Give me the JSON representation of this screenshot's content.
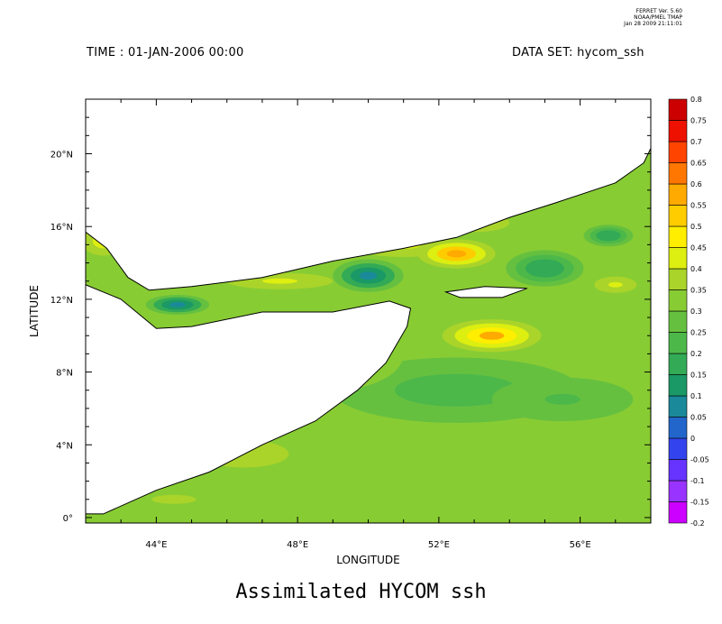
{
  "header": {
    "ferret_lines": [
      "FERRET Ver. 5.60",
      "NOAA/PMEL TMAP",
      "Jan 28 2009 21:11:01"
    ],
    "time_label": "TIME : 01-JAN-2006 00:00",
    "dataset_label": "DATA SET: hycom_ssh"
  },
  "title": "Assimilated HYCOM ssh",
  "chart_data": {
    "type": "heatmap",
    "title": "Assimilated HYCOM ssh",
    "xlabel": "LONGITUDE",
    "ylabel": "LATITUDE",
    "xlim": [
      42,
      58
    ],
    "ylim": [
      -0.3,
      23
    ],
    "x_ticks": [
      {
        "value": 44,
        "label": "44°E"
      },
      {
        "value": 48,
        "label": "48°E"
      },
      {
        "value": 52,
        "label": "52°E"
      },
      {
        "value": 56,
        "label": "56°E"
      }
    ],
    "y_ticks": [
      {
        "value": 0,
        "label": "0°"
      },
      {
        "value": 4,
        "label": "4°N"
      },
      {
        "value": 8,
        "label": "8°N"
      },
      {
        "value": 12,
        "label": "12°N"
      },
      {
        "value": 16,
        "label": "16°N"
      },
      {
        "value": 20,
        "label": "20°N"
      }
    ],
    "colorbar": {
      "levels": [
        -0.2,
        -0.15,
        -0.1,
        -0.05,
        0,
        0.05,
        0.1,
        0.15,
        0.2,
        0.25,
        0.3,
        0.35,
        0.4,
        0.45,
        0.5,
        0.55,
        0.6,
        0.65,
        0.7,
        0.75,
        0.8
      ],
      "labels": [
        "-0.2",
        "-0.15",
        "-0.1",
        "-0.05",
        "0",
        "0.05",
        "0.1",
        "0.15",
        "0.2",
        "0.25",
        "0.3",
        "0.35",
        "0.4",
        "0.45",
        "0.5",
        "0.55",
        "0.6",
        "0.65",
        "0.7",
        "0.75",
        "0.8"
      ],
      "colors": [
        "#cc00ff",
        "#9933ff",
        "#6633ff",
        "#3344ee",
        "#2266cc",
        "#1a8a9a",
        "#1a9966",
        "#33aa55",
        "#4db84a",
        "#66c040",
        "#88cc33",
        "#aad42a",
        "#ddee11",
        "#ffee00",
        "#ffcc00",
        "#ffaa00",
        "#ff7700",
        "#ff4400",
        "#ee1100",
        "#cc0000"
      ]
    },
    "base_value": 0.31,
    "features": [
      {
        "lon": 44.6,
        "lat": 11.7,
        "value": 0.07,
        "rx": 0.9,
        "ry": 0.55
      },
      {
        "lon": 50.0,
        "lat": 13.3,
        "value": 0.08,
        "rx": 1.0,
        "ry": 0.9
      },
      {
        "lon": 52.5,
        "lat": 14.5,
        "value": 0.58,
        "rx": 1.1,
        "ry": 0.8
      },
      {
        "lon": 53.5,
        "lat": 10.0,
        "value": 0.55,
        "rx": 1.4,
        "ry": 0.9
      },
      {
        "lon": 55.0,
        "lat": 13.7,
        "value": 0.15,
        "rx": 1.1,
        "ry": 1.0
      },
      {
        "lon": 56.8,
        "lat": 15.5,
        "value": 0.15,
        "rx": 0.7,
        "ry": 0.6
      },
      {
        "lon": 53.0,
        "lat": 16.2,
        "value": 0.48,
        "rx": 1.0,
        "ry": 0.5
      },
      {
        "lon": 51.0,
        "lat": 15.0,
        "value": 0.42,
        "rx": 2.0,
        "ry": 0.9
      },
      {
        "lon": 47.5,
        "lat": 13.0,
        "value": 0.42,
        "rx": 2.0,
        "ry": 0.6
      },
      {
        "lon": 57.0,
        "lat": 12.8,
        "value": 0.42,
        "rx": 0.8,
        "ry": 0.6
      },
      {
        "lon": 52.5,
        "lat": 7.0,
        "value": 0.22,
        "rx": 3.5,
        "ry": 1.8
      },
      {
        "lon": 55.5,
        "lat": 6.5,
        "value": 0.24,
        "rx": 2.0,
        "ry": 1.2
      },
      {
        "lon": 46.5,
        "lat": 3.5,
        "value": 0.38,
        "rx": 2.5,
        "ry": 1.5
      },
      {
        "lon": 49.0,
        "lat": 9.0,
        "value": 0.36,
        "rx": 2.0,
        "ry": 2.0
      },
      {
        "lon": 44.5,
        "lat": 1.0,
        "value": 0.36,
        "rx": 2.5,
        "ry": 1.0
      },
      {
        "lon": 42.5,
        "lat": 15.2,
        "value": 0.47,
        "rx": 0.6,
        "ry": 0.8
      }
    ],
    "land_polygon": [
      [
        42,
        23
      ],
      [
        42,
        15.7
      ],
      [
        42.6,
        14.8
      ],
      [
        43.2,
        13.2
      ],
      [
        43.8,
        12.5
      ],
      [
        45.0,
        12.7
      ],
      [
        47.0,
        13.2
      ],
      [
        49.0,
        14.1
      ],
      [
        51.0,
        14.8
      ],
      [
        52.5,
        15.4
      ],
      [
        54.0,
        16.5
      ],
      [
        55.3,
        17.3
      ],
      [
        57.0,
        18.4
      ],
      [
        57.8,
        19.5
      ],
      [
        58,
        20.3
      ],
      [
        58,
        23
      ]
    ],
    "somalia_polygon": [
      [
        42,
        0.2
      ],
      [
        42,
        12.8
      ],
      [
        43.0,
        12.0
      ],
      [
        44.0,
        10.4
      ],
      [
        45.0,
        10.5
      ],
      [
        47.0,
        11.3
      ],
      [
        49.0,
        11.3
      ],
      [
        50.6,
        11.9
      ],
      [
        51.2,
        11.5
      ],
      [
        51.1,
        10.5
      ],
      [
        50.5,
        8.5
      ],
      [
        49.7,
        7.0
      ],
      [
        48.5,
        5.3
      ],
      [
        47.0,
        4.0
      ],
      [
        45.5,
        2.5
      ],
      [
        44.0,
        1.5
      ],
      [
        42.5,
        0.2
      ]
    ],
    "island": [
      [
        52.2,
        12.4
      ],
      [
        53.3,
        12.7
      ],
      [
        54.5,
        12.6
      ],
      [
        53.8,
        12.1
      ],
      [
        52.6,
        12.1
      ]
    ]
  }
}
